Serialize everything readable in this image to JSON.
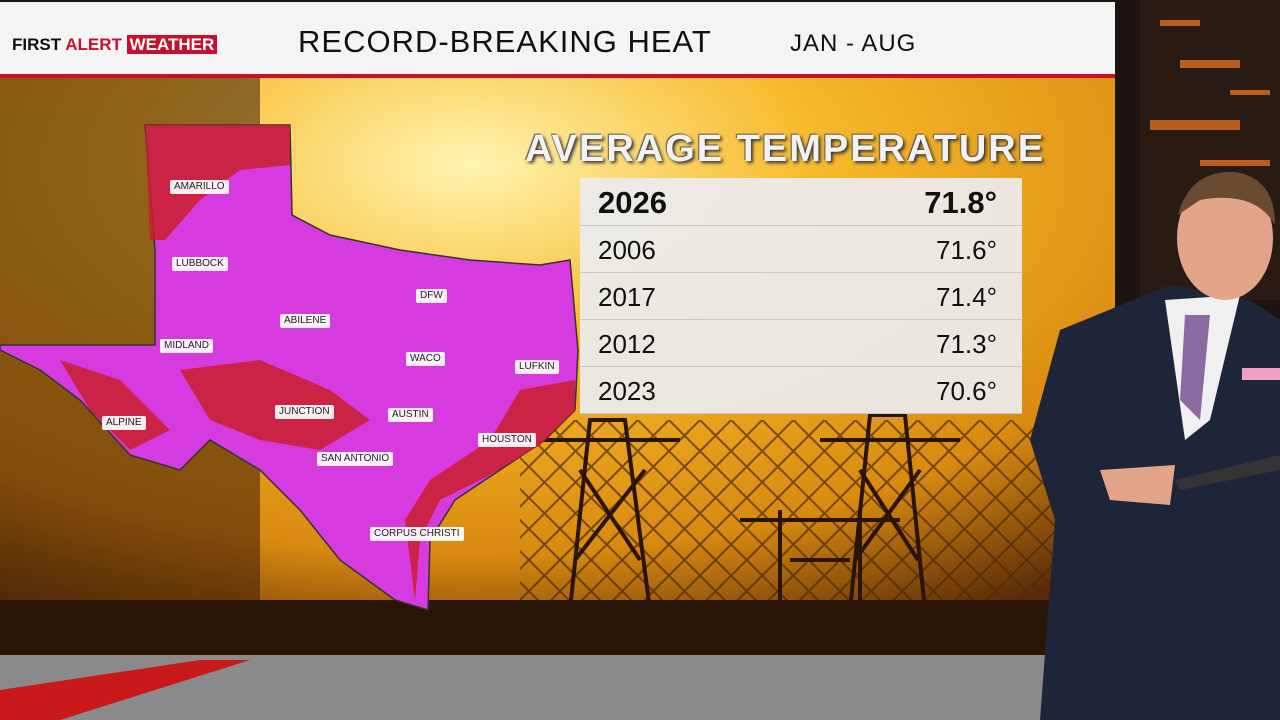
{
  "header": {
    "logo": {
      "first": "FIRST",
      "alert": "ALERT",
      "weather": "WEATHER"
    },
    "title": "RECORD-BREAKING HEAT",
    "period": "JAN - AUG"
  },
  "map": {
    "cities": [
      "AMARILLO",
      "LUBBOCK",
      "DFW",
      "ABILENE",
      "MIDLAND",
      "WACO",
      "LUFKIN",
      "ALPINE",
      "JUNCTION",
      "AUSTIN",
      "HOUSTON",
      "SAN ANTONIO",
      "CORPUS CHRISTI"
    ]
  },
  "table": {
    "title": "AVERAGE TEMPERATURE",
    "rows": [
      [
        "2026",
        "71.8°"
      ],
      [
        "2006",
        "71.6°"
      ],
      [
        "2017",
        "71.4°"
      ],
      [
        "2012",
        "71.3°"
      ],
      [
        "2023",
        "70.6°"
      ]
    ]
  }
}
